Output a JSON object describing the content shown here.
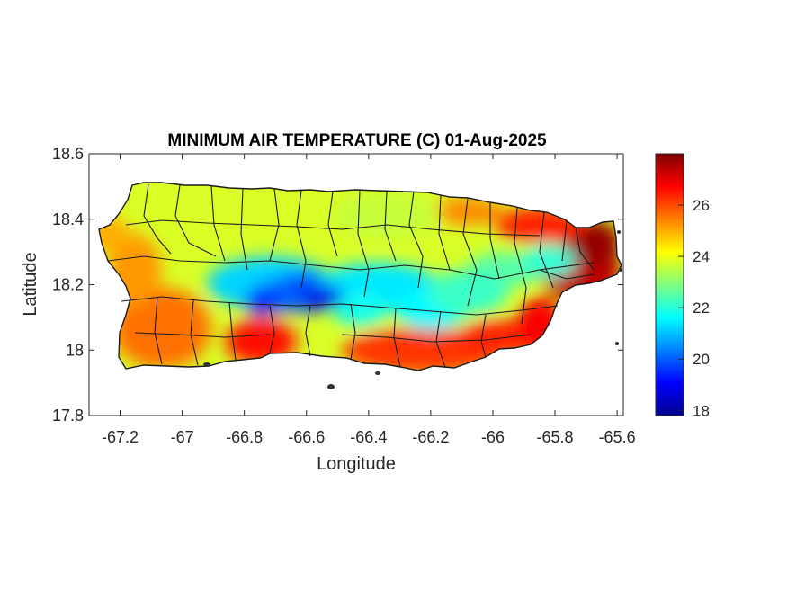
{
  "map": {
    "title": "MINIMUM AIR TEMPERATURE (C) 01-Aug-2025",
    "xlabel": "Longitude",
    "ylabel": "Latitude",
    "xlim": [
      -67.3,
      -65.58
    ],
    "ylim": [
      17.8,
      18.6
    ],
    "xticks": [
      {
        "value": -67.2,
        "label": "-67.2"
      },
      {
        "value": -67.0,
        "label": "-67"
      },
      {
        "value": -66.8,
        "label": "-66.8"
      },
      {
        "value": -66.6,
        "label": "-66.6"
      },
      {
        "value": -66.4,
        "label": "-66.4"
      },
      {
        "value": -66.2,
        "label": "-66.2"
      },
      {
        "value": -66.0,
        "label": "-66"
      },
      {
        "value": -65.8,
        "label": "-65.8"
      },
      {
        "value": -65.6,
        "label": "-65.6"
      }
    ],
    "yticks": [
      {
        "value": 17.8,
        "label": "17.8"
      },
      {
        "value": 18.0,
        "label": "18"
      },
      {
        "value": 18.2,
        "label": "18.2"
      },
      {
        "value": 18.4,
        "label": "18.4"
      },
      {
        "value": 18.6,
        "label": "18.6"
      }
    ],
    "region": "Puerto Rico municipalities",
    "colormap": "jet",
    "colors": {
      "axis": "#262626",
      "boundary": "#1a1a1a",
      "jet": [
        "#00008f",
        "#0000ff",
        "#0080ff",
        "#00ffff",
        "#80ff80",
        "#ffff00",
        "#ff8000",
        "#ff0000",
        "#800000"
      ]
    }
  },
  "colorbar": {
    "range": [
      17.8,
      28.0
    ],
    "ticks": [
      {
        "value": 18,
        "label": "18"
      },
      {
        "value": 20,
        "label": "20"
      },
      {
        "value": 22,
        "label": "22"
      },
      {
        "value": 24,
        "label": "24"
      },
      {
        "value": 26,
        "label": "26"
      }
    ]
  }
}
